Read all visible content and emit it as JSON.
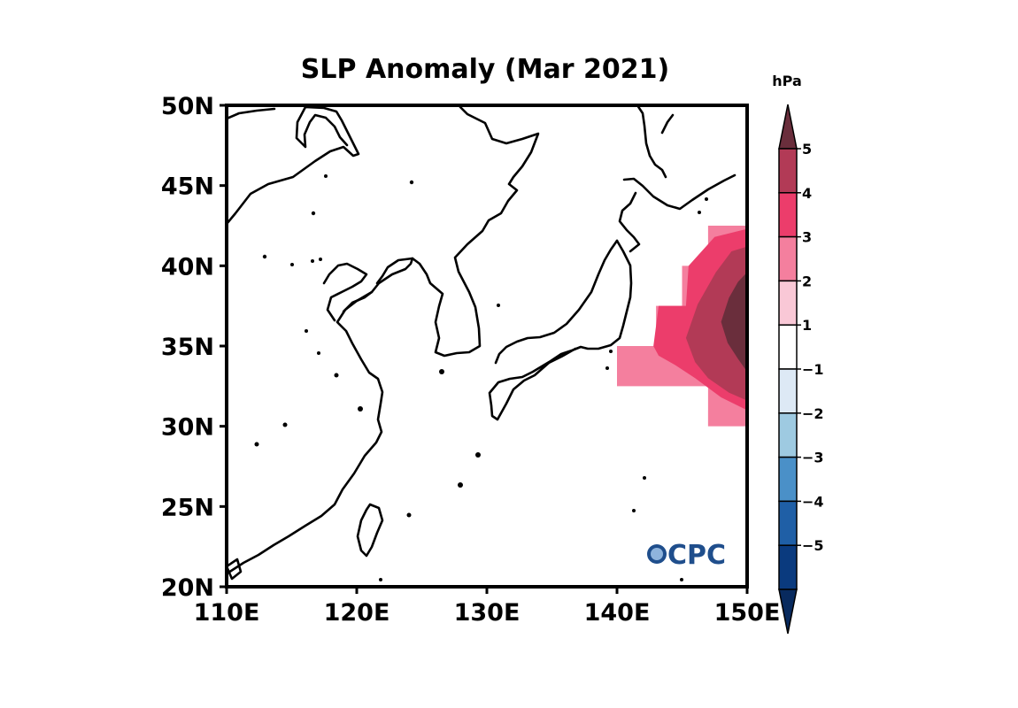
{
  "title": "SLP Anomaly (Mar 2021)",
  "units": "hPa",
  "map": {
    "lon_range": [
      110,
      150
    ],
    "lat_range": [
      20,
      50
    ],
    "lon_ticks": [
      {
        "value": 110,
        "label": "110E"
      },
      {
        "value": 120,
        "label": "120E"
      },
      {
        "value": 130,
        "label": "130E"
      },
      {
        "value": 140,
        "label": "140E"
      },
      {
        "value": 150,
        "label": "150E"
      }
    ],
    "lat_ticks": [
      {
        "value": 20,
        "label": "20N"
      },
      {
        "value": 25,
        "label": "25N"
      },
      {
        "value": 30,
        "label": "30N"
      },
      {
        "value": 35,
        "label": "35N"
      },
      {
        "value": 40,
        "label": "40N"
      },
      {
        "value": 45,
        "label": "45N"
      },
      {
        "value": 50,
        "label": "50N"
      }
    ]
  },
  "chart_data": {
    "type": "heatmap",
    "title": "SLP Anomaly (Mar 2021)",
    "units": "hPa",
    "x_range": [
      110,
      150
    ],
    "y_range": [
      20,
      50
    ],
    "contour_levels": [
      -5,
      -4,
      -3,
      -2,
      -1,
      1,
      2,
      3,
      4,
      5
    ],
    "anomaly_regions": [
      {
        "level": "1 to 2",
        "color": "#f9c8d6",
        "polygon": [
          [
            147,
            30
          ],
          [
            150,
            30
          ],
          [
            150,
            31
          ],
          [
            147,
            31
          ]
        ]
      },
      {
        "level": "2 to 3",
        "color": "#f47f9e",
        "polygon": [
          [
            140,
            32.5
          ],
          [
            147,
            32.5
          ],
          [
            147,
            30
          ],
          [
            150,
            30
          ],
          [
            150,
            42.5
          ],
          [
            147,
            42.5
          ],
          [
            147,
            40
          ],
          [
            145,
            40
          ],
          [
            145,
            37.5
          ],
          [
            143,
            37.5
          ],
          [
            143,
            35
          ],
          [
            140,
            35
          ]
        ]
      },
      {
        "level": "3 to 4",
        "color": "#ec3d6b",
        "polygon": [
          [
            142.8,
            35
          ],
          [
            143.2,
            37.5
          ],
          [
            145.3,
            37.5
          ],
          [
            145.5,
            40
          ],
          [
            147.5,
            41.8
          ],
          [
            150,
            42.3
          ],
          [
            150,
            31
          ],
          [
            148,
            31.8
          ],
          [
            146,
            33
          ],
          [
            144.5,
            33.8
          ],
          [
            143.2,
            34.4
          ]
        ]
      },
      {
        "level": "4 to 5",
        "color": "#b23a56",
        "polygon": [
          [
            145.3,
            35.5
          ],
          [
            146.2,
            37.6
          ],
          [
            147.6,
            39.6
          ],
          [
            148.8,
            40.9
          ],
          [
            150,
            41.2
          ],
          [
            150,
            31.6
          ],
          [
            148.6,
            32.1
          ],
          [
            147,
            33
          ],
          [
            146,
            34
          ]
        ]
      },
      {
        "level": "> 5",
        "color": "#6a2e3c",
        "polygon": [
          [
            148,
            36.5
          ],
          [
            148.6,
            38
          ],
          [
            149.3,
            39
          ],
          [
            150,
            39.6
          ],
          [
            150,
            33.4
          ],
          [
            149.3,
            34.2
          ],
          [
            148.5,
            35.2
          ]
        ]
      }
    ]
  },
  "colorbar": {
    "labels": [
      "5",
      "4",
      "3",
      "2",
      "1",
      "−1",
      "−2",
      "−3",
      "−4",
      "−5"
    ],
    "colors": [
      "#6a2e3c",
      "#b23a56",
      "#ec3d6b",
      "#f47f9e",
      "#f9c8d6",
      "#ffffff",
      "#dde9f5",
      "#9ecae1",
      "#4a90c8",
      "#1f5fa6",
      "#0a3a7e",
      "#082a5e"
    ]
  },
  "logo": {
    "text": "CPC"
  }
}
